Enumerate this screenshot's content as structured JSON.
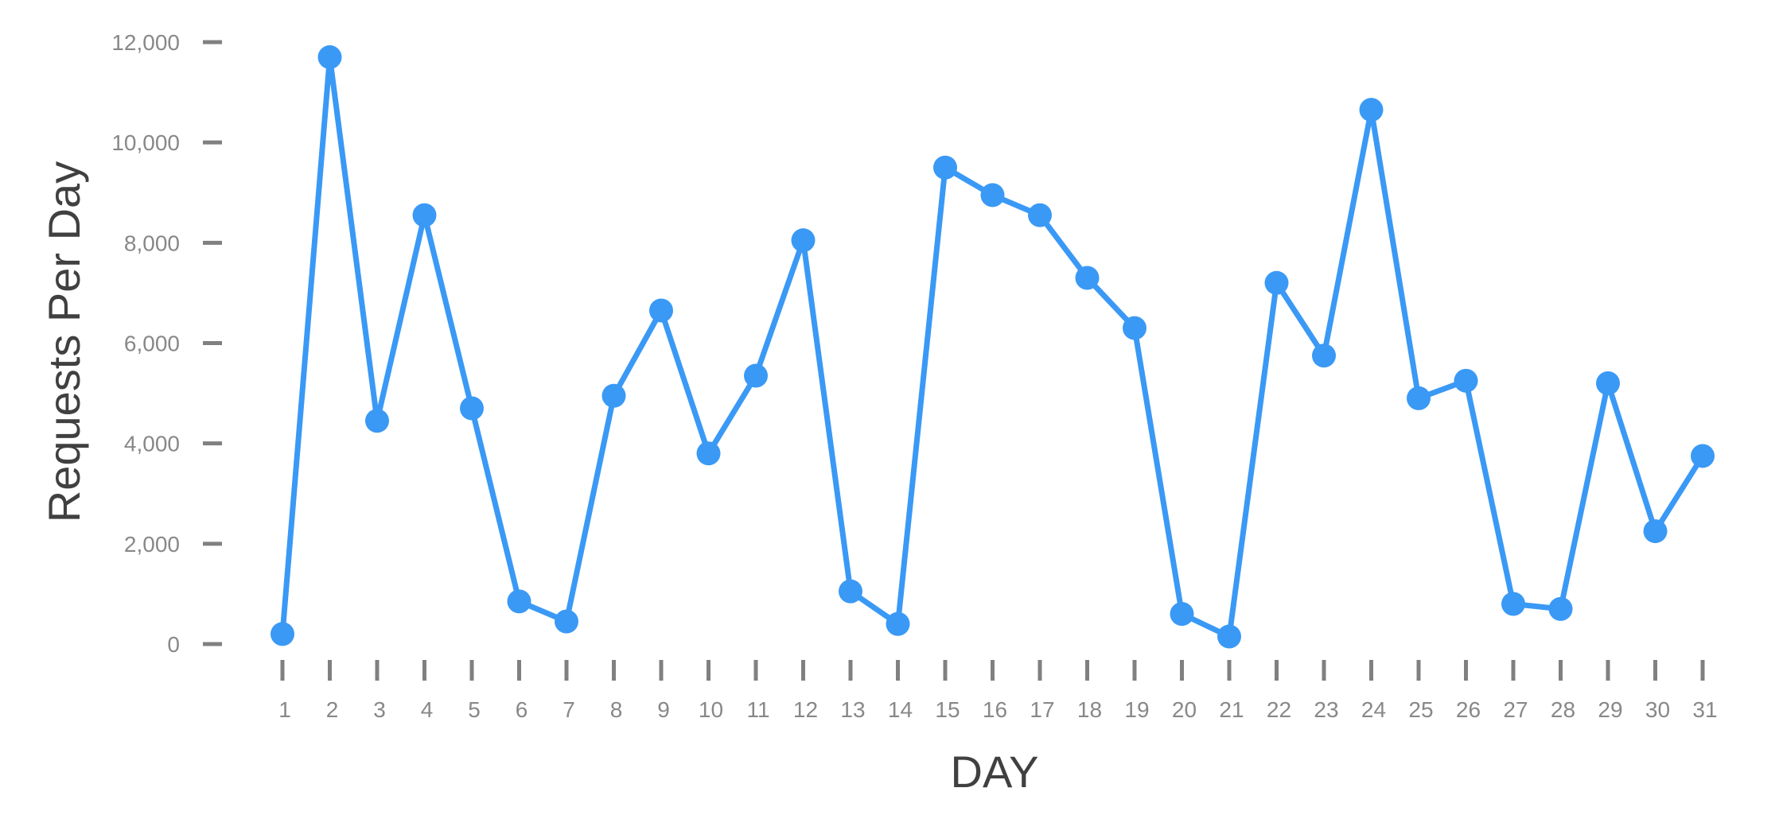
{
  "chart_data": {
    "type": "line",
    "title": "",
    "xlabel": "DAY",
    "ylabel": "Requests Per Day",
    "x": [
      1,
      2,
      3,
      4,
      5,
      6,
      7,
      8,
      9,
      10,
      11,
      12,
      13,
      14,
      15,
      16,
      17,
      18,
      19,
      20,
      21,
      22,
      23,
      24,
      25,
      26,
      27,
      28,
      29,
      30,
      31
    ],
    "x_tick_labels": [
      "1",
      "2",
      "3",
      "4",
      "5",
      "6",
      "7",
      "8",
      "9",
      "10",
      "11",
      "12",
      "13",
      "14",
      "15",
      "16",
      "17",
      "18",
      "19",
      "20",
      "21",
      "22",
      "23",
      "24",
      "25",
      "26",
      "27",
      "28",
      "29",
      "30",
      "31"
    ],
    "series": [
      {
        "values": [
          200,
          11700,
          4450,
          8550,
          4700,
          850,
          450,
          4950,
          6650,
          3800,
          5350,
          8050,
          1050,
          400,
          9500,
          8950,
          8550,
          7300,
          6300,
          600,
          150,
          7200,
          5750,
          10650,
          4900,
          5250,
          800,
          700,
          5200,
          2250,
          3750
        ]
      }
    ],
    "y_ticks": [
      0,
      2000,
      4000,
      6000,
      8000,
      10000,
      12000
    ],
    "y_tick_labels": [
      "0",
      "2,000",
      "4,000",
      "6,000",
      "8,000",
      "10,000",
      "12,000"
    ],
    "ylim": [
      0,
      12000
    ],
    "xlim": [
      1,
      31
    ],
    "grid": false,
    "legend": "none",
    "colors": {
      "line": "#3a99f5",
      "tick": "#808080",
      "tick_label": "#888888",
      "axis_title": "#404040"
    }
  }
}
